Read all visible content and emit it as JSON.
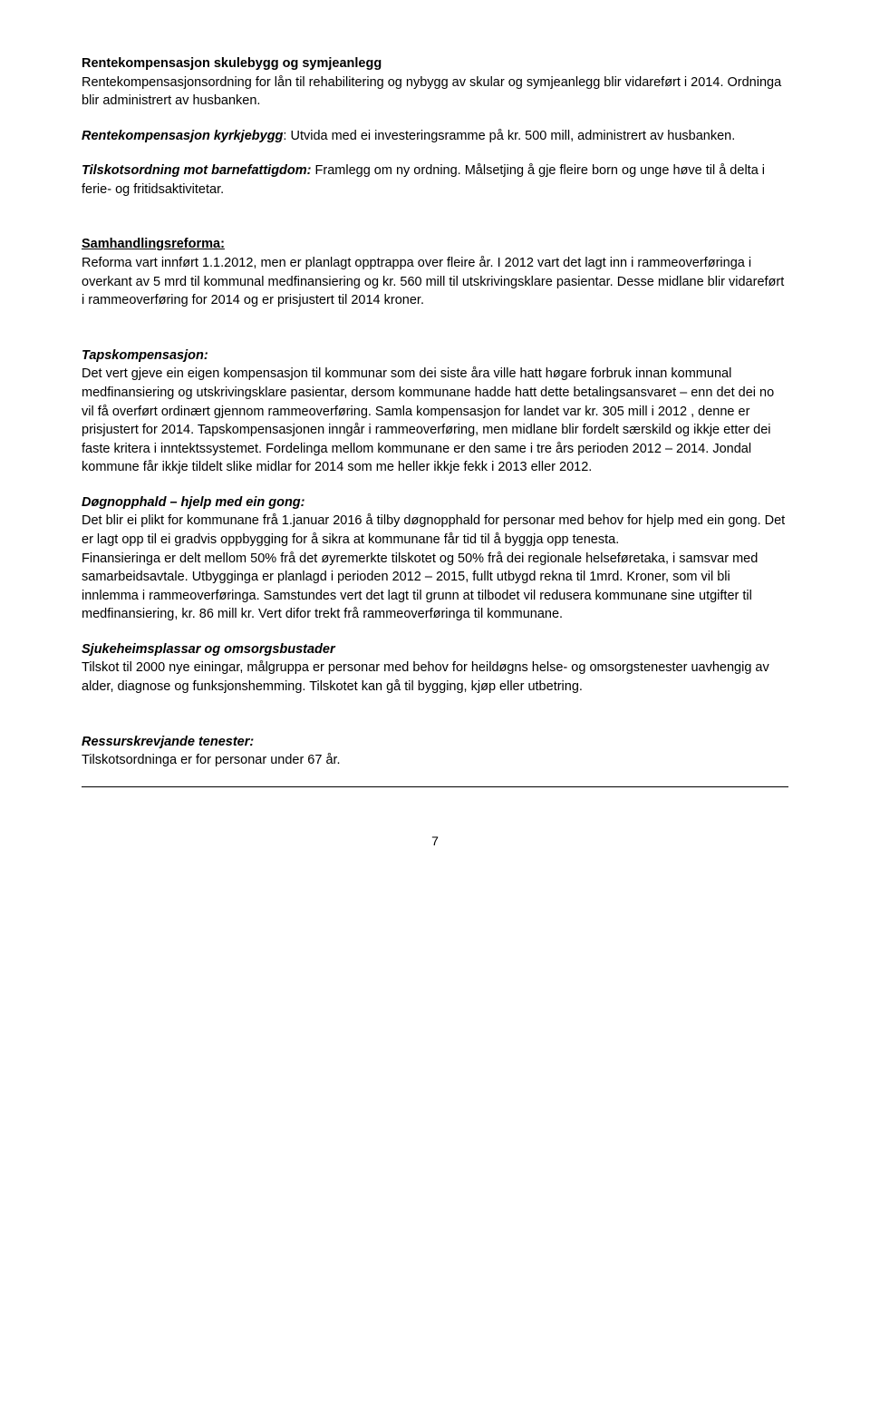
{
  "sections": {
    "s1": {
      "heading": "Rentekompensasjon skulebygg og symjeanlegg",
      "body": "Rentekompensasjonsordning for lån til rehabilitering og nybygg av skular og symjeanlegg blir vidareført i 2014.  Ordninga blir administrert av husbanken."
    },
    "s2": {
      "lead": "Rentekompensasjon kyrkjebygg",
      "tail": ":  Utvida med ei investeringsramme på kr. 500 mill, administrert av husbanken."
    },
    "s3": {
      "lead": "Tilskotsordning mot barnefattigdom:",
      "tail": "  Framlegg om ny ordning.  Målsetjing å gje fleire born og unge høve til å delta i ferie- og fritidsaktivitetar."
    },
    "s4": {
      "heading": "Samhandlingsreforma:",
      "body": "Reforma vart innført 1.1.2012, men er planlagt opptrappa over fleire år.  I 2012 vart det lagt inn i rammeoverføringa i overkant av 5 mrd til kommunal medfinansiering og kr. 560 mill til utskrivingsklare pasientar.  Desse midlane blir vidareført i rammeoverføring for 2014 og er prisjustert til 2014 kroner."
    },
    "s5": {
      "heading": "Tapskompensasjon:",
      "body": "Det vert gjeve ein eigen kompensasjon til kommunar som dei siste åra ville hatt høgare forbruk innan kommunal medfinansiering og utskrivingsklare pasientar, dersom kommunane hadde hatt dette betalingsansvaret – enn det dei no vil få overført ordinært gjennom rammeoverføring. Samla kompensasjon for landet var kr. 305 mill i 2012 , denne er prisjustert for 2014. Tapskompensasjonen inngår i rammeoverføring, men midlane blir fordelt særskild og ikkje etter dei faste kritera i inntektssystemet.  Fordelinga mellom kommunane er den same i tre års perioden 2012 – 2014. Jondal kommune får ikkje tildelt slike midlar for 2014 som me heller ikkje fekk i 2013 eller 2012."
    },
    "s6": {
      "heading": "Døgnopphald – hjelp med ein gong:",
      "p1": "Det blir ei plikt for kommunane frå 1.januar 2016 å tilby døgnopphald for personar med behov for hjelp med ein gong.  Det er lagt opp til ei gradvis oppbygging for å sikra at kommunane får tid til å byggja opp tenesta.",
      "p2": "Finansieringa er delt mellom 50% frå det øyremerkte tilskotet og 50% frå dei regionale helseføretaka, i samsvar med samarbeidsavtale.    Utbygginga er planlagd i perioden 2012 – 2015, fullt utbygd rekna til 1mrd. Kroner, som vil bli innlemma i rammeoverføringa. Samstundes vert det lagt til grunn at tilbodet vil redusera kommunane sine utgifter til medfinansiering, kr. 86 mill kr. Vert difor trekt frå rammeoverføringa til kommunane."
    },
    "s7": {
      "heading": "Sjukeheimsplassar og omsorgsbustader",
      "body": "Tilskot til 2000 nye einingar, målgruppa er personar med behov for heildøgns helse- og omsorgstenester uavhengig av alder, diagnose og funksjonshemming.  Tilskotet kan gå til bygging, kjøp eller utbetring."
    },
    "s8": {
      "heading": "Ressurskrevjande tenester:",
      "body": "Tilskotsordninga er for personar under 67 år."
    }
  },
  "page_number": "7"
}
